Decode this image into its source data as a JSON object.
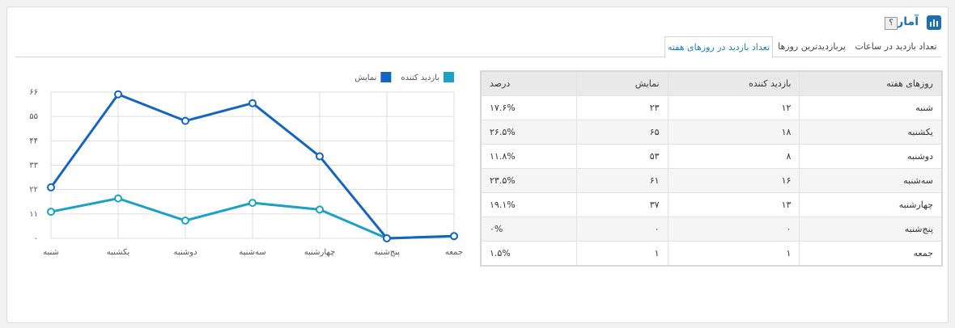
{
  "header": {
    "title": "آمار",
    "help": "؟"
  },
  "tabs": [
    "تعداد بازدید در ساعات",
    "پربازدیدترین روزها",
    "تعداد بازدید در روزهای هفته"
  ],
  "chart_data": {
    "type": "line",
    "categories": [
      "شنبه",
      "یکشنبه",
      "دوشنبه",
      "سه‌شنبه",
      "چهارشنبه",
      "پنج‌شنبه",
      "جمعه"
    ],
    "series": [
      {
        "name": "بازدید کننده",
        "color": "#1ba1c6",
        "values": [
          12,
          18,
          8,
          16,
          13,
          0,
          1
        ]
      },
      {
        "name": "نمایش",
        "color": "#1565c0",
        "values": [
          23,
          65,
          53,
          61,
          37,
          0,
          1
        ]
      }
    ],
    "ylim": [
      0,
      66
    ],
    "yticks": [
      {
        "value": 0,
        "label": "۰"
      },
      {
        "value": 11,
        "label": "۱۱"
      },
      {
        "value": 22,
        "label": "۲۲"
      },
      {
        "value": 33,
        "label": "۳۳"
      },
      {
        "value": 44,
        "label": "۴۴"
      },
      {
        "value": 55,
        "label": "۵۵"
      },
      {
        "value": 66,
        "label": "۶۶"
      }
    ],
    "grid": true
  },
  "table": {
    "headers": [
      "روزهای هفته",
      "بازدید کننده",
      "نمایش",
      "درصد"
    ],
    "rows": [
      [
        "شنبه",
        "۱۲",
        "۲۳",
        "۱۷.۶%"
      ],
      [
        "یکشنبه",
        "۱۸",
        "۶۵",
        "۲۶.۵%"
      ],
      [
        "دوشنبه",
        "۸",
        "۵۳",
        "۱۱.۸%"
      ],
      [
        "سه‌شنبه",
        "۱۶",
        "۶۱",
        "۲۳.۵%"
      ],
      [
        "چهارشنبه",
        "۱۳",
        "۳۷",
        "۱۹.۱%"
      ],
      [
        "پنج‌شنبه",
        "۰",
        "۰",
        "۰%"
      ],
      [
        "جمعه",
        "۱",
        "۱",
        "۱.۵%"
      ]
    ]
  }
}
